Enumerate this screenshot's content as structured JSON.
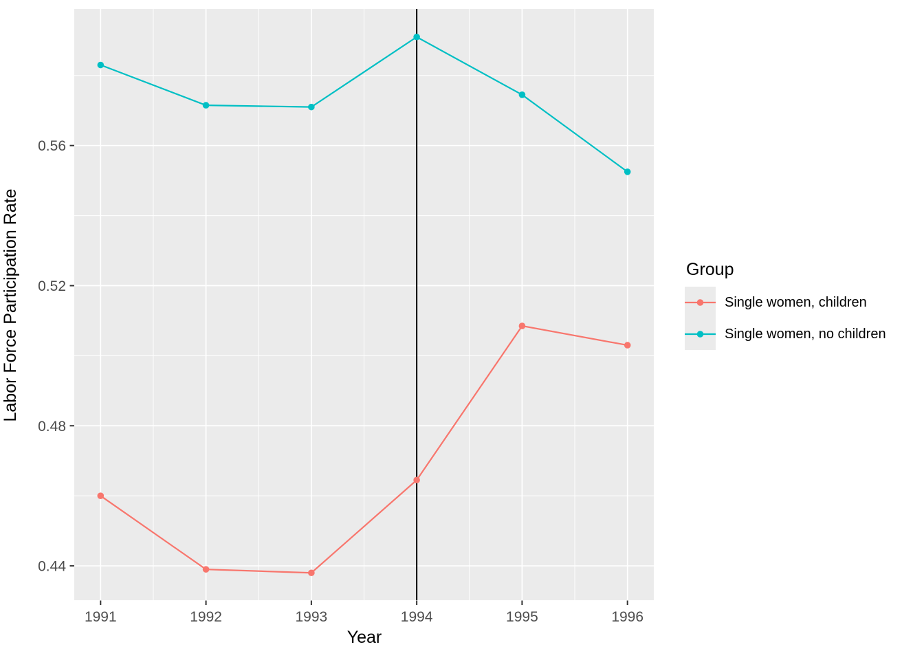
{
  "chart_data": {
    "type": "line",
    "title": "",
    "xlabel": "Year",
    "ylabel": "Labor Force Participation Rate",
    "x": [
      1991,
      1992,
      1993,
      1994,
      1995,
      1996
    ],
    "x_tick_labels": [
      "1991",
      "1992",
      "1993",
      "1994",
      "1995",
      "1996"
    ],
    "y_ticks": [
      0.44,
      0.48,
      0.52,
      0.56
    ],
    "y_tick_labels": [
      "0.44",
      "0.48",
      "0.52",
      "0.56"
    ],
    "x_minor": [
      1991.5,
      1992.5,
      1993.5,
      1994.5,
      1995.5
    ],
    "y_minor": [
      0.46,
      0.5,
      0.54,
      0.58
    ],
    "xlim": [
      1990.75,
      1996.25
    ],
    "ylim": [
      0.4302,
      0.599
    ],
    "vline_x": 1994,
    "grid": "on",
    "legend_position": "right",
    "legend_title": "Group",
    "series": [
      {
        "name": "Single women, children",
        "color": "#F8766D",
        "values": [
          0.46,
          0.439,
          0.438,
          0.4645,
          0.5085,
          0.503
        ]
      },
      {
        "name": "Single women, no children",
        "color": "#00BFC4",
        "values": [
          0.583,
          0.5715,
          0.571,
          0.591,
          0.5745,
          0.5525
        ]
      }
    ]
  },
  "style": {
    "background": "#FFFFFF",
    "panel_bg": "#EBEBEB",
    "grid_color": "#FFFFFF",
    "tick_label_color": "#4D4D4D",
    "tick_mark_color": "#333333",
    "axis_title_color": "#000000",
    "vline_color": "#000000"
  }
}
